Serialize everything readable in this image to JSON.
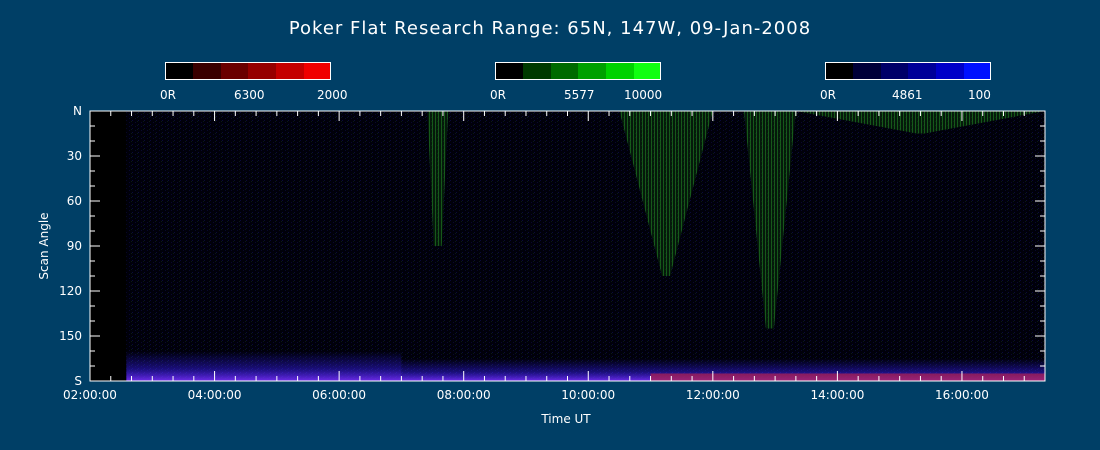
{
  "page": {
    "title": "Poker Flat Research Range: 65N, 147W, 09-Jan-2008"
  },
  "colorbars": [
    {
      "name": "red",
      "labels": [
        "0R",
        "6300",
        "2000"
      ],
      "swatches": [
        "#000000",
        "#3a0000",
        "#6a0000",
        "#960000",
        "#c40000",
        "#f00000"
      ]
    },
    {
      "name": "green",
      "labels": [
        "0R",
        "5577",
        "10000"
      ],
      "swatches": [
        "#000000",
        "#003a00",
        "#006a00",
        "#00a000",
        "#00d200",
        "#10ff10"
      ]
    },
    {
      "name": "blue",
      "labels": [
        "0R",
        "4861",
        "100"
      ],
      "swatches": [
        "#000000",
        "#000038",
        "#000068",
        "#000098",
        "#0000c8",
        "#0010ff"
      ]
    }
  ],
  "chart_data": {
    "type": "heatmap",
    "title": "Poker Flat Research Range: 65N, 147W, 09-Jan-2008",
    "xlabel": "Time UT",
    "ylabel": "Scan Angle",
    "xlim": [
      "02:00:00",
      "17:20:00"
    ],
    "x_ticks": [
      "02:00:00",
      "04:00:00",
      "06:00:00",
      "08:00:00",
      "10:00:00",
      "12:00:00",
      "14:00:00",
      "16:00:00"
    ],
    "y_ticks": [
      "N",
      "30",
      "60",
      "90",
      "120",
      "150",
      "S"
    ],
    "ylim": [
      0,
      180
    ],
    "y_inverted": true,
    "no_data_until": "02:35:00",
    "green_5577_emission": [
      {
        "start": "07:25:00",
        "end": "07:45:00",
        "max_angle": 90
      },
      {
        "start": "10:30:00",
        "end": "12:00:00",
        "max_angle": 110
      },
      {
        "start": "12:30:00",
        "end": "13:20:00",
        "max_angle": 145
      },
      {
        "start": "13:20:00",
        "end": "17:20:00",
        "max_angle": 15
      }
    ],
    "blue_4861_emission": [
      {
        "start": "02:35:00",
        "end": "07:00:00",
        "min_angle": 160,
        "max_angle": 180
      },
      {
        "start": "07:00:00",
        "end": "17:20:00",
        "min_angle": 165,
        "max_angle": 180
      }
    ],
    "red_6300_emission": [
      {
        "start": "11:00:00",
        "end": "17:20:00",
        "min_angle": 175,
        "max_angle": 180
      }
    ]
  }
}
